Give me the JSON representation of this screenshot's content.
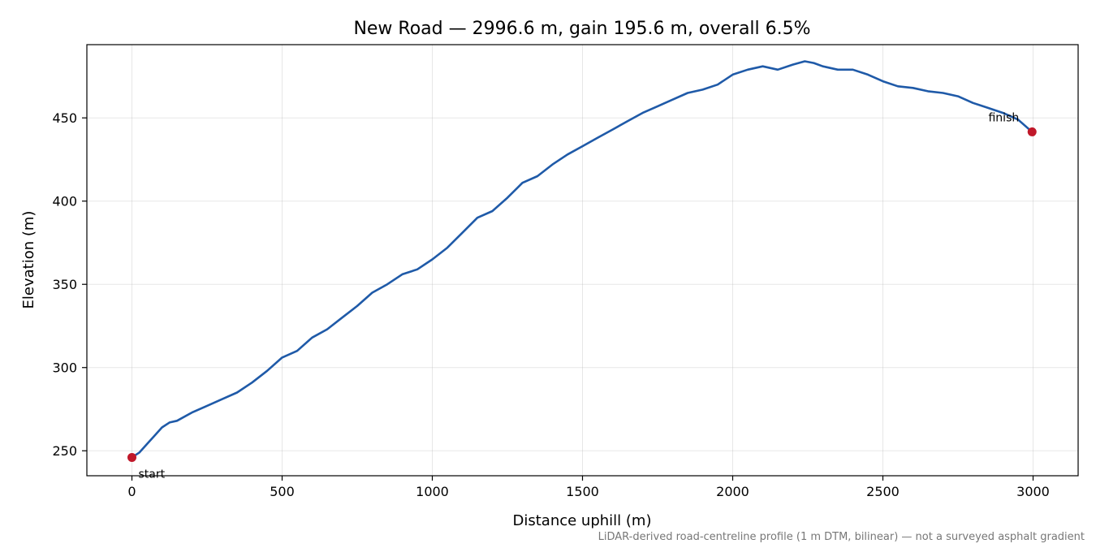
{
  "chart_data": {
    "type": "line",
    "title": "New Road — 2996.6 m, gain 195.6 m, overall 6.5%",
    "xlabel": "Distance uphill (m)",
    "ylabel": "Elevation (m)",
    "xlim": [
      -150,
      3150
    ],
    "ylim": [
      235,
      494
    ],
    "xticks": [
      0,
      500,
      1000,
      1500,
      2000,
      2500,
      3000
    ],
    "xtick_labels": [
      "0",
      "500",
      "1000",
      "1500",
      "2000",
      "2500",
      "3000"
    ],
    "yticks": [
      250,
      300,
      350,
      400,
      450
    ],
    "ytick_labels": [
      "250",
      "300",
      "350",
      "400",
      "450"
    ],
    "grid": true,
    "line_color": "#1f5aa8",
    "marker_color": "#c0182a",
    "series": [
      {
        "x": [
          0,
          25,
          50,
          75,
          100,
          125,
          150,
          200,
          250,
          300,
          350,
          400,
          450,
          500,
          550,
          600,
          650,
          700,
          750,
          800,
          850,
          900,
          950,
          1000,
          1050,
          1100,
          1150,
          1200,
          1250,
          1300,
          1350,
          1400,
          1450,
          1500,
          1550,
          1600,
          1650,
          1700,
          1750,
          1800,
          1850,
          1900,
          1950,
          2000,
          2050,
          2100,
          2150,
          2200,
          2240,
          2270,
          2300,
          2350,
          2400,
          2450,
          2500,
          2550,
          2600,
          2650,
          2700,
          2750,
          2800,
          2850,
          2900,
          2950,
          2996.6
        ],
        "y": [
          246,
          249,
          254,
          259,
          264,
          267,
          268,
          273,
          277,
          281,
          285,
          291,
          298,
          306,
          310,
          318,
          323,
          330,
          337,
          345,
          350,
          356,
          359,
          365,
          372,
          381,
          390,
          394,
          402,
          411,
          415,
          422,
          428,
          433,
          438,
          443,
          448,
          453,
          457,
          461,
          465,
          467,
          470,
          476,
          479,
          481,
          479,
          482,
          484,
          483,
          481,
          479,
          479,
          476,
          472,
          469,
          468,
          466,
          465,
          463,
          459,
          456,
          453,
          449,
          441.6
        ]
      }
    ],
    "annotations": [
      {
        "text": "start",
        "x": 0,
        "y": 246
      },
      {
        "text": "finish",
        "x": 2996.6,
        "y": 441.6
      }
    ],
    "footnote": "LiDAR-derived road-centreline profile (1 m DTM, bilinear) — not a surveyed asphalt gradient"
  }
}
